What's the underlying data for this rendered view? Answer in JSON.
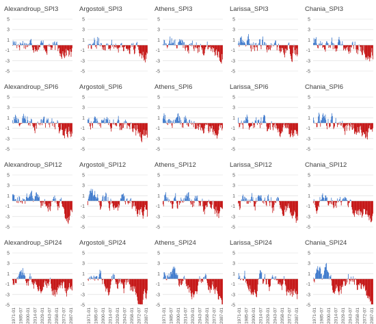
{
  "figure": {
    "stations": [
      "Alexandroup",
      "Argostoli",
      "Athens",
      "Larissa",
      "Chania"
    ],
    "indices": [
      "SPI3",
      "SPI6",
      "SPI12",
      "SPI24"
    ]
  },
  "colors": {
    "positive": "#2f6fc8",
    "negative": "#c00000",
    "grid": "#d9d9d9",
    "axis": "#bfbfbf"
  },
  "chart_data": [
    {
      "type": "bar",
      "title": "Alexandroup_SPI3",
      "yticks": [
        5,
        3,
        1,
        -1,
        -3,
        -5
      ],
      "ylim": [
        -5,
        5
      ],
      "xticks": [],
      "grid": true,
      "series": [
        {
          "name": "positive",
          "color": "#2f6fc8"
        },
        {
          "name": "negative",
          "color": "#c00000"
        }
      ]
    },
    {
      "type": "bar",
      "title": "Argostoli_SPI3",
      "yticks": [
        5,
        3,
        1,
        -1,
        -3,
        -5
      ],
      "ylim": [
        -5,
        5
      ],
      "xticks": [],
      "grid": true,
      "series": [
        {
          "name": "positive",
          "color": "#2f6fc8"
        },
        {
          "name": "negative",
          "color": "#c00000"
        }
      ]
    },
    {
      "type": "bar",
      "title": "Athens_SPI3",
      "yticks": [
        5,
        3,
        1,
        -1,
        -3,
        -5
      ],
      "ylim": [
        -5,
        5
      ],
      "xticks": [],
      "grid": true,
      "series": [
        {
          "name": "positive",
          "color": "#2f6fc8"
        },
        {
          "name": "negative",
          "color": "#c00000"
        }
      ]
    },
    {
      "type": "bar",
      "title": "Larissa_SPI3",
      "yticks": [
        5,
        3,
        1,
        -1,
        -3,
        -5
      ],
      "ylim": [
        -5,
        5
      ],
      "xticks": [],
      "grid": true,
      "series": [
        {
          "name": "positive",
          "color": "#2f6fc8"
        },
        {
          "name": "negative",
          "color": "#c00000"
        }
      ]
    },
    {
      "type": "bar",
      "title": "Chania_SPI3",
      "yticks": [
        5,
        3,
        1,
        -1,
        -3,
        -5
      ],
      "ylim": [
        -5,
        5
      ],
      "xticks": [],
      "grid": true,
      "series": [
        {
          "name": "positive",
          "color": "#2f6fc8"
        },
        {
          "name": "negative",
          "color": "#c00000"
        }
      ]
    },
    {
      "type": "bar",
      "title": "Alexandroup_SPI6",
      "yticks": [
        5,
        3,
        1,
        -1,
        -3,
        -5
      ],
      "ylim": [
        -5,
        5
      ],
      "xticks": [],
      "grid": true,
      "series": [
        {
          "name": "positive",
          "color": "#2f6fc8"
        },
        {
          "name": "negative",
          "color": "#c00000"
        }
      ]
    },
    {
      "type": "bar",
      "title": "Argostoli_SPI6",
      "yticks": [
        5,
        3,
        1,
        -1,
        -3,
        -5
      ],
      "ylim": [
        -5,
        5
      ],
      "xticks": [],
      "grid": true,
      "series": [
        {
          "name": "positive",
          "color": "#2f6fc8"
        },
        {
          "name": "negative",
          "color": "#c00000"
        }
      ]
    },
    {
      "type": "bar",
      "title": "Athens_SPI6",
      "yticks": [
        5,
        3,
        1,
        -1,
        -3,
        -5
      ],
      "ylim": [
        -5,
        5
      ],
      "xticks": [],
      "grid": true,
      "series": [
        {
          "name": "positive",
          "color": "#2f6fc8"
        },
        {
          "name": "negative",
          "color": "#c00000"
        }
      ]
    },
    {
      "type": "bar",
      "title": "Larissa_SPI6",
      "yticks": [
        5,
        3,
        1,
        -1,
        -3,
        -5
      ],
      "ylim": [
        -5,
        5
      ],
      "xticks": [],
      "grid": true,
      "series": [
        {
          "name": "positive",
          "color": "#2f6fc8"
        },
        {
          "name": "negative",
          "color": "#c00000"
        }
      ]
    },
    {
      "type": "bar",
      "title": "Chania_SPI6",
      "yticks": [
        5,
        3,
        1,
        -1,
        -3,
        -5
      ],
      "ylim": [
        -5,
        5
      ],
      "xticks": [],
      "grid": true,
      "series": [
        {
          "name": "positive",
          "color": "#2f6fc8"
        },
        {
          "name": "negative",
          "color": "#c00000"
        }
      ]
    },
    {
      "type": "bar",
      "title": "Alexandroup_SPI12",
      "yticks": [
        5,
        3,
        1,
        -1,
        -3,
        -5
      ],
      "ylim": [
        -5,
        5
      ],
      "xticks": [],
      "grid": true,
      "series": [
        {
          "name": "positive",
          "color": "#2f6fc8"
        },
        {
          "name": "negative",
          "color": "#c00000"
        }
      ]
    },
    {
      "type": "bar",
      "title": "Argostoli_SPI12",
      "yticks": [
        5,
        3,
        1,
        -1,
        -3,
        -5
      ],
      "ylim": [
        -5,
        5
      ],
      "xticks": [],
      "grid": true,
      "series": [
        {
          "name": "positive",
          "color": "#2f6fc8"
        },
        {
          "name": "negative",
          "color": "#c00000"
        }
      ]
    },
    {
      "type": "bar",
      "title": "Athens_SPI12",
      "yticks": [
        5,
        3,
        1,
        -1,
        -3,
        -5
      ],
      "ylim": [
        -5,
        5
      ],
      "xticks": [],
      "grid": true,
      "series": [
        {
          "name": "positive",
          "color": "#2f6fc8"
        },
        {
          "name": "negative",
          "color": "#c00000"
        }
      ]
    },
    {
      "type": "bar",
      "title": "Larissa_SPI12",
      "yticks": [
        5,
        3,
        1,
        -1,
        -3,
        -5
      ],
      "ylim": [
        -5,
        5
      ],
      "xticks": [],
      "grid": true,
      "series": [
        {
          "name": "positive",
          "color": "#2f6fc8"
        },
        {
          "name": "negative",
          "color": "#c00000"
        }
      ]
    },
    {
      "type": "bar",
      "title": "Chania_SPI12",
      "yticks": [
        5,
        3,
        1,
        -1,
        -3,
        -5
      ],
      "ylim": [
        -5,
        5
      ],
      "xticks": [],
      "grid": true,
      "series": [
        {
          "name": "positive",
          "color": "#2f6fc8"
        },
        {
          "name": "negative",
          "color": "#c00000"
        }
      ]
    },
    {
      "type": "bar",
      "title": "Alexandroup_SPI24",
      "yticks": [
        5,
        3,
        1,
        -1,
        -3,
        -5
      ],
      "ylim": [
        -5,
        5
      ],
      "xticks": [
        "1971-01",
        "1985-07",
        "2000-01",
        "2014-07",
        "2029-01",
        "2043-07",
        "2058-01",
        "2072-07",
        "2087-01"
      ],
      "grid": true,
      "series": [
        {
          "name": "positive",
          "color": "#2f6fc8"
        },
        {
          "name": "negative",
          "color": "#c00000"
        }
      ]
    },
    {
      "type": "bar",
      "title": "Argostoli_SPI24",
      "yticks": [
        5,
        3,
        1,
        -1,
        -3,
        -5
      ],
      "ylim": [
        -5,
        5
      ],
      "xticks": [
        "1971-01",
        "1985-07",
        "2000-01",
        "2014-07",
        "2029-01",
        "2043-07",
        "2058-01",
        "2072-07",
        "2087-01"
      ],
      "grid": true,
      "series": [
        {
          "name": "positive",
          "color": "#2f6fc8"
        },
        {
          "name": "negative",
          "color": "#c00000"
        }
      ]
    },
    {
      "type": "bar",
      "title": "Athens_SPI24",
      "yticks": [
        5,
        3,
        1,
        -1,
        -3,
        -5
      ],
      "ylim": [
        -5,
        5
      ],
      "xticks": [
        "1971-01",
        "1985-07",
        "2000-01",
        "2014-07",
        "2029-01",
        "2043-07",
        "2058-01",
        "2072-07",
        "2087-01"
      ],
      "grid": true,
      "series": [
        {
          "name": "positive",
          "color": "#2f6fc8"
        },
        {
          "name": "negative",
          "color": "#c00000"
        }
      ]
    },
    {
      "type": "bar",
      "title": "Larissa_SPI24",
      "yticks": [
        5,
        3,
        1,
        -1,
        -3,
        -5
      ],
      "ylim": [
        -5,
        5
      ],
      "xticks": [
        "1971-01",
        "1985-07",
        "2000-01",
        "2014-07",
        "2029-01",
        "2043-07",
        "2058-01",
        "2072-07",
        "2087-01"
      ],
      "grid": true,
      "series": [
        {
          "name": "positive",
          "color": "#2f6fc8"
        },
        {
          "name": "negative",
          "color": "#c00000"
        }
      ]
    },
    {
      "type": "bar",
      "title": "Chania_SPI24",
      "yticks": [
        5,
        3,
        1,
        -1,
        -3,
        -5
      ],
      "ylim": [
        -5,
        5
      ],
      "xticks": [
        "1971-01",
        "1985-07",
        "2000-01",
        "2014-07",
        "2029-01",
        "2043-07",
        "2058-01",
        "2072-07",
        "2087-01"
      ],
      "grid": true,
      "series": [
        {
          "name": "positive",
          "color": "#2f6fc8"
        },
        {
          "name": "negative",
          "color": "#c00000"
        }
      ]
    }
  ]
}
